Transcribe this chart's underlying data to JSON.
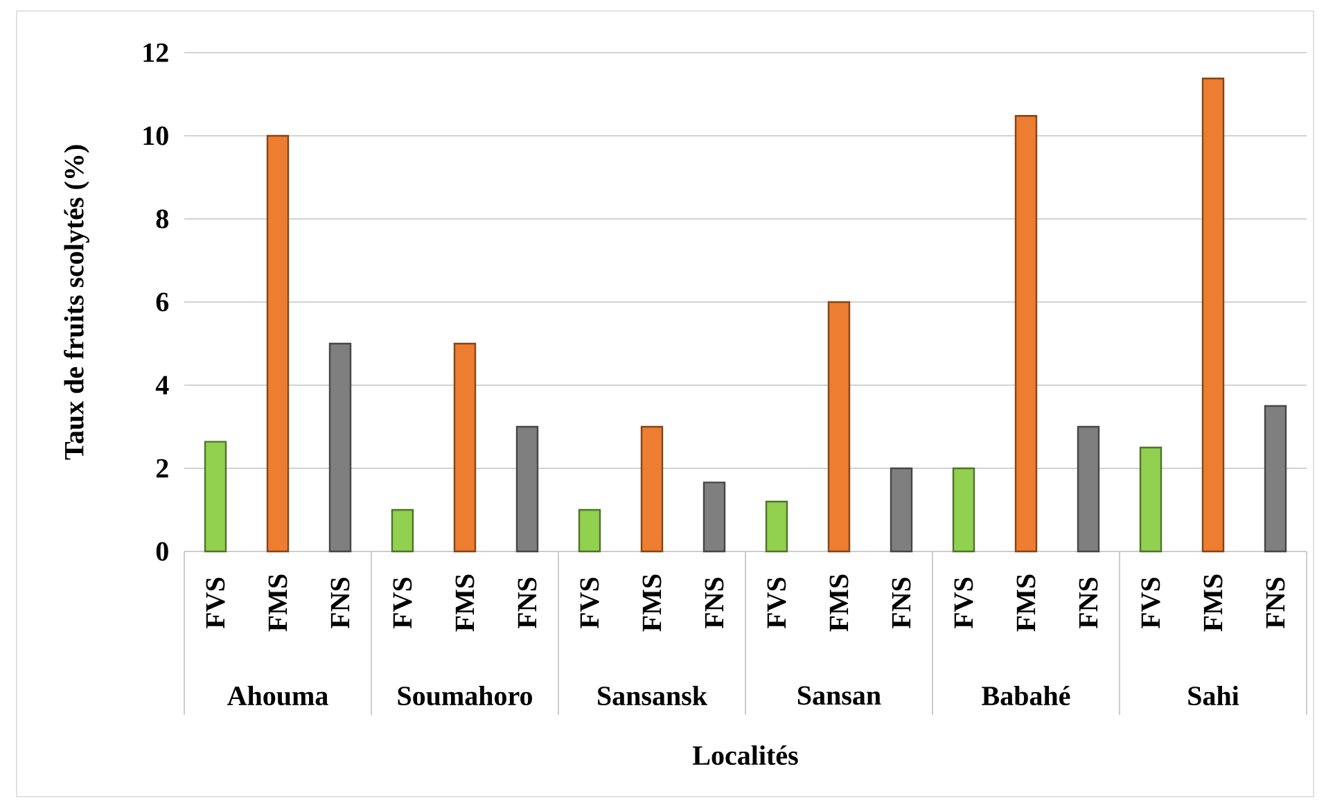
{
  "chart_data": {
    "type": "bar",
    "xlabel": "Localités",
    "ylabel": "Taux de fruits scolytés (%)",
    "categories": [
      "Ahouma",
      "Soumahoro",
      "Sansansk",
      "Sansan",
      "Babahé",
      "Sahi"
    ],
    "series": [
      {
        "name": "FVS",
        "color": "#92d050",
        "values": [
          2.64,
          1.0,
          1.0,
          1.2,
          2.0,
          2.5
        ]
      },
      {
        "name": "FMS",
        "color": "#ed7d31",
        "values": [
          10.0,
          5.0,
          3.0,
          6.0,
          10.48,
          11.38
        ]
      },
      {
        "name": "FNS",
        "color": "#7f7f7f",
        "values": [
          5.0,
          3.0,
          1.66,
          2.0,
          3.0,
          3.5
        ]
      }
    ],
    "ylim": [
      0,
      12
    ],
    "yticks": [
      0,
      2,
      4,
      6,
      8,
      10,
      12
    ],
    "grid": "y"
  }
}
